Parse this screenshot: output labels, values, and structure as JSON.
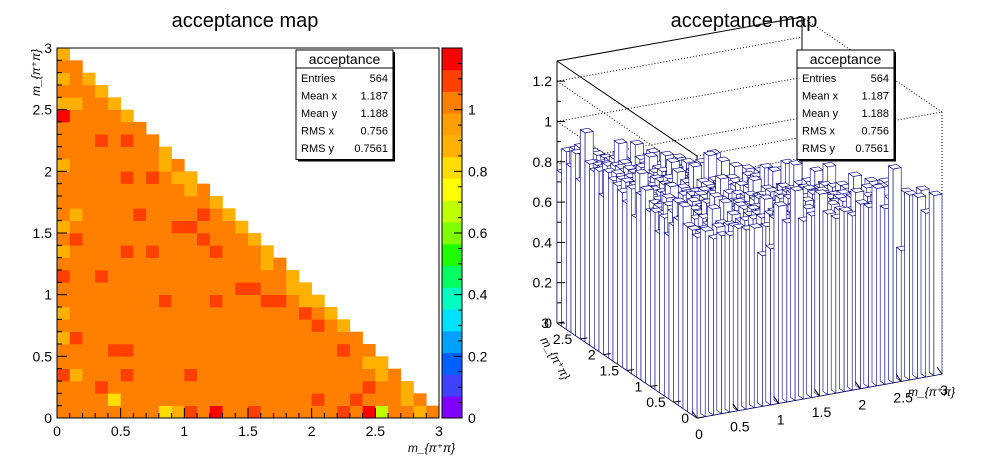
{
  "chart_data": [
    {
      "type": "heatmap",
      "title": "acceptance map",
      "xlabel": "m_{π⁺π}",
      "ylabel": "m_{π⁺π}",
      "xlim": [
        0,
        3
      ],
      "ylim": [
        0,
        3
      ],
      "x_ticks": [
        "0",
        "0.5",
        "1",
        "1.5",
        "2",
        "2.5",
        "3"
      ],
      "y_ticks": [
        "0",
        "0.5",
        "1",
        "1.5",
        "2",
        "2.5",
        "3"
      ],
      "z_ticks": [
        "0",
        "0.2",
        "0.4",
        "0.6",
        "0.8",
        "1"
      ],
      "zlim": [
        0,
        1.2
      ],
      "bins": 30,
      "grid": false,
      "colors": {
        "palette": [
          "#8000ff",
          "#4040ff",
          "#0060ff",
          "#00a0ff",
          "#00e0ff",
          "#00ffc0",
          "#00ff60",
          "#20ff00",
          "#80ff00",
          "#c0ff00",
          "#ffff00",
          "#ffdd00",
          "#ffb000",
          "#ffa000",
          "#ff8000",
          "#ff4000",
          "#ff0000"
        ],
        "bulk": "#ffa000"
      },
      "stats": {
        "name": "acceptance",
        "rows": [
          {
            "label": "Entries",
            "value": "564"
          },
          {
            "label": "Mean x",
            "value": "1.187"
          },
          {
            "label": "Mean y",
            "value": "1.188"
          },
          {
            "label": "RMS x",
            "value": "0.756"
          },
          {
            "label": "RMS y",
            "value": "0.7561"
          }
        ]
      },
      "support": "x + y <= 3",
      "bulk_value": 1.0,
      "cells": [
        {
          "x": 0.35,
          "y": 2.95,
          "z": 1.2
        },
        {
          "x": 0.25,
          "y": 2.95,
          "z": 1.2
        },
        {
          "x": 0.45,
          "y": 2.95,
          "z": 0.85
        },
        {
          "x": 0.15,
          "y": 2.95,
          "z": 0.9
        },
        {
          "x": 0.05,
          "y": 2.45,
          "z": 1.2
        },
        {
          "x": 0.55,
          "y": 2.75,
          "z": 1.15
        },
        {
          "x": 0.65,
          "y": 2.65,
          "z": 0.85
        },
        {
          "x": 0.05,
          "y": 2.55,
          "z": 0.9
        },
        {
          "x": 0.05,
          "y": 2.75,
          "z": 0.9
        },
        {
          "x": 0.15,
          "y": 2.55,
          "z": 0.9
        },
        {
          "x": 2.45,
          "y": 0.05,
          "z": 1.2
        },
        {
          "x": 2.95,
          "y": 0.25,
          "z": 1.2
        },
        {
          "x": 0.95,
          "y": 0.05,
          "z": 0.85
        },
        {
          "x": 0.45,
          "y": 0.15,
          "z": 0.8
        },
        {
          "x": 2.55,
          "y": 0.05,
          "z": 0.7
        },
        {
          "x": 0.05,
          "y": 0.65,
          "z": 0.9
        },
        {
          "x": 0.05,
          "y": 0.85,
          "z": 0.85
        },
        {
          "x": 0.05,
          "y": 1.55,
          "z": 0.9
        },
        {
          "x": 0.05,
          "y": 1.35,
          "z": 0.9
        },
        {
          "x": 0.15,
          "y": 1.65,
          "z": 0.9
        },
        {
          "x": 0.05,
          "y": 2.05,
          "z": 0.9
        },
        {
          "x": 0.15,
          "y": 0.35,
          "z": 0.9
        },
        {
          "x": 2.85,
          "y": 0.05,
          "z": 0.9
        },
        {
          "x": 2.75,
          "y": 0.15,
          "z": 0.9
        },
        {
          "x": 1.25,
          "y": 0.05,
          "z": 1.15
        },
        {
          "x": 1.55,
          "y": 0.05,
          "z": 1.1
        },
        {
          "x": 1.05,
          "y": 0.05,
          "z": 1.1
        },
        {
          "x": 0.85,
          "y": 0.05,
          "z": 0.8
        }
      ]
    },
    {
      "type": "lego3d",
      "title": "acceptance map",
      "xlabel": "m_{π⁺π}",
      "ylabel": "m_{π⁺π}",
      "xlim": [
        0,
        3
      ],
      "ylim": [
        0,
        3
      ],
      "zlim": [
        0,
        1.3
      ],
      "x_ticks": [
        "0",
        "0.5",
        "1",
        "1.5",
        "2",
        "2.5",
        "3"
      ],
      "y_ticks": [
        "0",
        "0.5",
        "1",
        "1.5",
        "2",
        "2.5",
        "3"
      ],
      "z_ticks": [
        "0",
        "0.2",
        "0.4",
        "0.6",
        "0.8",
        "1",
        "1.2"
      ],
      "colors": {
        "bar_edge": "#000080",
        "bar_fill": "#ffffff"
      },
      "stats": {
        "name": "acceptance",
        "rows": [
          {
            "label": "Entries",
            "value": "564"
          },
          {
            "label": "Mean x",
            "value": "1.187"
          },
          {
            "label": "Mean y",
            "value": "1.188"
          },
          {
            "label": "RMS x",
            "value": "0.756"
          },
          {
            "label": "RMS y",
            "value": "0.7561"
          }
        ]
      }
    }
  ]
}
